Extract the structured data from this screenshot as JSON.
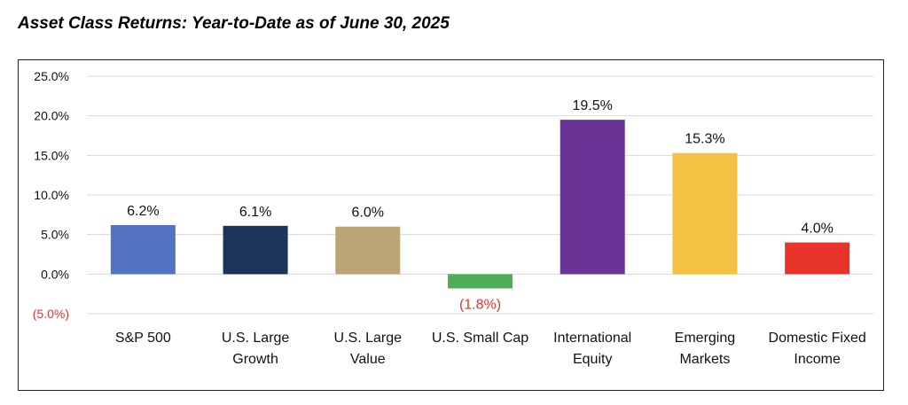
{
  "chart_data": {
    "type": "bar",
    "title": "Asset Class Returns: Year-to-Date as of June 30, 2025",
    "xlabel": "",
    "ylabel": "",
    "ylim": [
      -5,
      25
    ],
    "yticks": [
      {
        "value": 25,
        "label": "25.0%"
      },
      {
        "value": 20,
        "label": "20.0%"
      },
      {
        "value": 15,
        "label": "15.0%"
      },
      {
        "value": 10,
        "label": "10.0%"
      },
      {
        "value": 5,
        "label": "5.0%"
      },
      {
        "value": 0,
        "label": "0.0%"
      },
      {
        "value": -5,
        "label": "(5.0%)"
      }
    ],
    "grid": true,
    "negative_color": "#e8332a",
    "bars": [
      {
        "category": [
          "S&P 500"
        ],
        "value": 6.2,
        "label": "6.2%",
        "color": "#5273c4"
      },
      {
        "category": [
          "U.S. Large",
          "Growth"
        ],
        "value": 6.1,
        "label": "6.1%",
        "color": "#1c335a"
      },
      {
        "category": [
          "U.S. Large",
          "Value"
        ],
        "value": 6.0,
        "label": "6.0%",
        "color": "#bda474"
      },
      {
        "category": [
          "U.S. Small Cap"
        ],
        "value": -1.8,
        "label": "(1.8%)",
        "color": "#4caf58"
      },
      {
        "category": [
          "International",
          "Equity"
        ],
        "value": 19.5,
        "label": "19.5%",
        "color": "#6a3398"
      },
      {
        "category": [
          "Emerging",
          "Markets"
        ],
        "value": 15.3,
        "label": "15.3%",
        "color": "#f4c242"
      },
      {
        "category": [
          "Domestic Fixed",
          "Income"
        ],
        "value": 4.0,
        "label": "4.0%",
        "color": "#e8332a"
      }
    ]
  }
}
